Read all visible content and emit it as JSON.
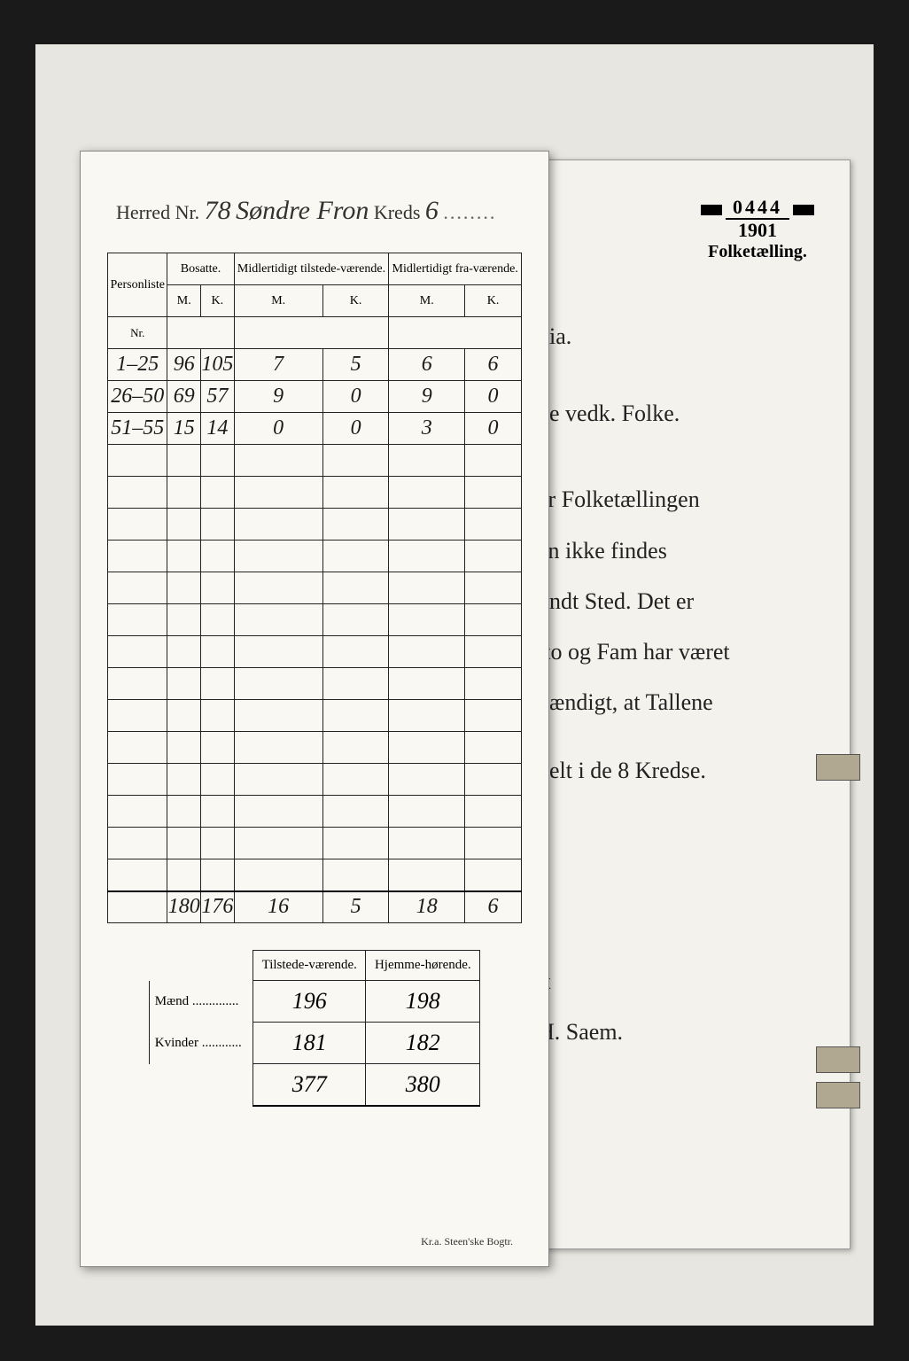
{
  "archive": {
    "stamp_number": "0444",
    "stamp_year": "1901",
    "stamp_label": "Folketælling."
  },
  "form": {
    "herred_label": "Herred",
    "nr_label": "Nr.",
    "herred_nr": "78",
    "herred_name": "Søndre Fron",
    "kreds_label": "Kreds",
    "kreds_nr": "6",
    "printer": "Kr.a.  Steen'ske Bogtr."
  },
  "table": {
    "headers": {
      "personliste": "Personliste",
      "bosatte": "Bosatte.",
      "midl_tilstede": "Midlertidigt tilstede-værende.",
      "midl_fra": "Midlertidigt fra-værende.",
      "nr": "Nr.",
      "m": "M.",
      "k": "K."
    },
    "rows": [
      {
        "nr": "1–25",
        "bm": "96",
        "bk": "105",
        "tm": "7",
        "tk": "5",
        "fm": "6",
        "fk": "6"
      },
      {
        "nr": "26–50",
        "bm": "69",
        "bk": "57",
        "tm": "9",
        "tk": "0",
        "fm": "9",
        "fk": "0"
      },
      {
        "nr": "51–55",
        "bm": "15",
        "bk": "14",
        "tm": "0",
        "tk": "0",
        "fm": "3",
        "fk": "0"
      }
    ],
    "empty_rows": 14,
    "totals": {
      "bm": "180",
      "bk": "176",
      "tm": "16",
      "tk": "5",
      "fm": "18",
      "fk": "6"
    }
  },
  "summary": {
    "headers": {
      "tilstede": "Tilstede-værende.",
      "hjemme": "Hjemme-hørende."
    },
    "maend_label": "Mænd",
    "kvinder_label": "Kvinder",
    "maend": {
      "tilstede": "196",
      "hjemme": "198"
    },
    "kvinder": {
      "tilstede": "181",
      "hjemme": "182"
    },
    "total": {
      "tilstede": "377",
      "hjemme": "380"
    }
  },
  "back_page": {
    "line1": "…nia.",
    "line2": "…de vedk. Folke.",
    "line3": "…er Folketællingen",
    "line4": "…en ikke findes",
    "line5": "…undt Sted. Det er",
    "line6": "…tto og Fam har været",
    "line7": "…hændigt, at Tallene",
    "line8": "…delt i de 8 Kredse.",
    "line9": "…it",
    "line10": "…H. Saem."
  }
}
